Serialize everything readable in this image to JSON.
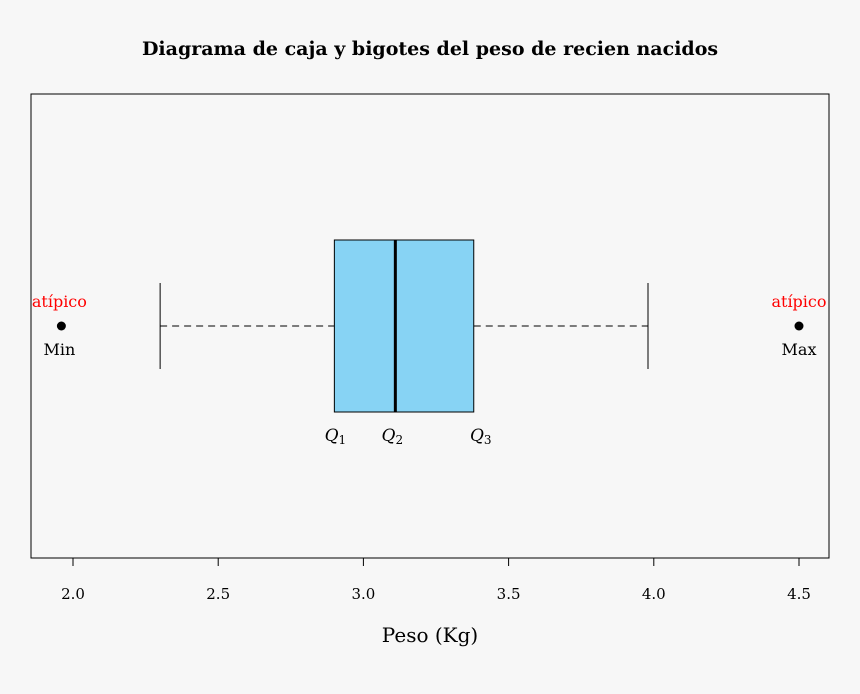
{
  "chart_data": {
    "type": "boxplot",
    "title": "Diagrama de caja y bigotes del peso de recien nacidos",
    "xlabel": "Peso (Kg)",
    "xlim": [
      1.86,
      4.55
    ],
    "ticks": [
      "2.0",
      "2.5",
      "3.0",
      "3.5",
      "4.0",
      "4.5"
    ],
    "tick_values": [
      2.0,
      2.5,
      3.0,
      3.5,
      4.0,
      4.5
    ],
    "box": {
      "whisker_low": 2.3,
      "q1": 2.9,
      "median": 3.11,
      "q3": 3.38,
      "whisker_high": 3.98
    },
    "outliers": [
      1.96,
      4.5
    ],
    "box_color": "#87d3f4",
    "annotations": {
      "outlier_label": "atípico",
      "outlier_label_color": "#ff0000",
      "min_label": "Min",
      "max_label": "Max",
      "q_letter": "Q",
      "q1_sub": "1",
      "q2_sub": "2",
      "q3_sub": "3"
    }
  }
}
